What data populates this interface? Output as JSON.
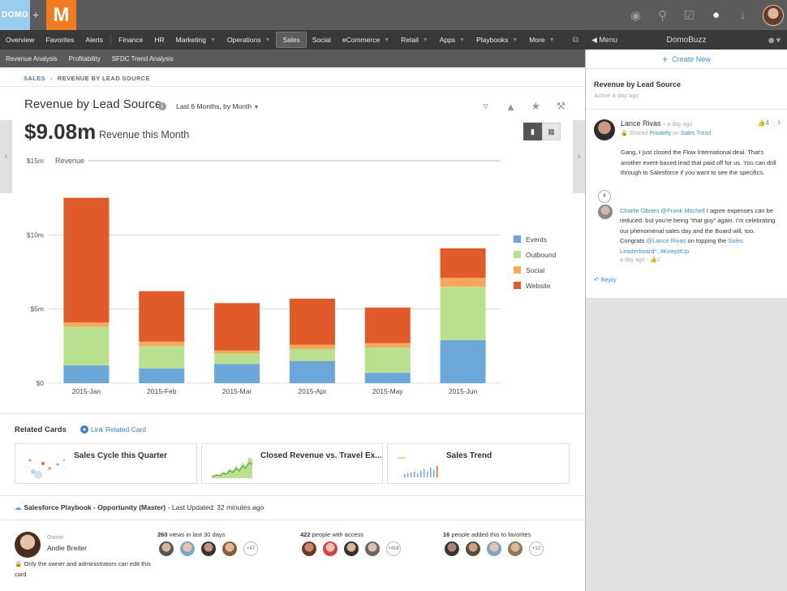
{
  "brand": {
    "domo": "DOMO",
    "plus": "+",
    "m": "M"
  },
  "nav": {
    "items": [
      "Overview",
      "Favorites",
      "Alerts",
      "Finance",
      "HR",
      "Marketing",
      "Operations",
      "Sales",
      "Social",
      "eCommerce",
      "Retail",
      "Apps",
      "Playbooks",
      "More"
    ],
    "active": "Sales"
  },
  "subnav": [
    "Revenue Analysis",
    "Profitability",
    "SFDC Trend Analysis"
  ],
  "breadcrumb": {
    "root": "SALES",
    "current": "REVENUE BY LEAD SOURCE"
  },
  "card": {
    "title": "Revenue by Lead Source",
    "date_range": "Last 6 Months, by Month",
    "summary_value": "$9.08m",
    "summary_caption": "Revenue this Month"
  },
  "chart_data": {
    "type": "bar",
    "stacked": true,
    "categories": [
      "2015-Jan",
      "2015-Feb",
      "2015-Mar",
      "2015-Apr",
      "2015-May",
      "2015-Jun"
    ],
    "series": [
      {
        "name": "Events",
        "color": "#6ba7d8",
        "values": [
          1.2,
          1.0,
          1.3,
          1.5,
          0.7,
          2.9
        ]
      },
      {
        "name": "Outbound",
        "color": "#b9e08f",
        "values": [
          2.6,
          1.5,
          0.7,
          0.8,
          1.7,
          3.6
        ]
      },
      {
        "name": "Social",
        "color": "#f7a85a",
        "values": [
          0.3,
          0.3,
          0.2,
          0.3,
          0.3,
          0.6
        ]
      },
      {
        "name": "Website",
        "color": "#e05a2a",
        "values": [
          8.4,
          3.4,
          3.2,
          3.1,
          2.4,
          2.0
        ]
      }
    ],
    "ylim": [
      0,
      15
    ],
    "yticks": [
      0,
      5,
      10,
      15
    ],
    "ytick_labels": [
      "$0",
      "$5m",
      "$10m",
      "$15m"
    ],
    "ylabel": "Revenue",
    "legend": "right",
    "grid": true
  },
  "related": {
    "title": "Related Cards",
    "link_label": "Link Related Card",
    "cards": [
      {
        "title": "Sales Cycle this Quarter"
      },
      {
        "title": "Closed Revenue vs. Travel Ex..."
      },
      {
        "title": "Sales Trend"
      }
    ]
  },
  "source": {
    "name": "Salesforce Playbook - Opportunity (Master)",
    "separator": "-",
    "updated": "Last Updated: 32 minutes ago"
  },
  "owner": {
    "label": "Owner",
    "name": "Andie Breiter",
    "note": "Only the owner and administrators can edit this card"
  },
  "stats": {
    "views": {
      "count": "260",
      "text": "views in last 30 days",
      "more": "+47"
    },
    "access": {
      "count": "422",
      "text": "people with access",
      "more": "+418"
    },
    "favorites": {
      "count": "16",
      "text": "people added this to favorites",
      "more": "+12"
    }
  },
  "buzz": {
    "menu_label": "Menu",
    "title": "DomoBuzz",
    "create_new": "Create New",
    "card_title": "Revenue by Lead Source",
    "card_sub": "Active a day ago",
    "message": {
      "author": "Lance Rivas",
      "time": "a day ago",
      "meta_prefix": "Shared",
      "meta_privately": "Privately",
      "meta_on": "on",
      "meta_card": "Sales Trend",
      "likes": "4",
      "body": "Gang, I just closed the Flow International deal. That's another event-based lead that paid off for us. You can drill through to Salesforce if you want to see the specifics."
    },
    "reply_count": "4",
    "reply": {
      "author": "Charlie Obrien",
      "mention": "@Frank Mitchell",
      "body1": " I agree expenses can be reduced, but you're being “that guy” again. I'm celebrating our phenomenal sales day and the Board will, too. Congrats ",
      "mention2": "@Lance Rivas",
      "body2": " on topping the ",
      "link": "Sales Leaderboard*",
      "tag": ", #KeepItUp",
      "time": "a day ago",
      "likes": "2"
    },
    "reply_link": "Reply"
  },
  "colors": {
    "accent": "#3a8fd1",
    "orange": "#f47c20"
  }
}
